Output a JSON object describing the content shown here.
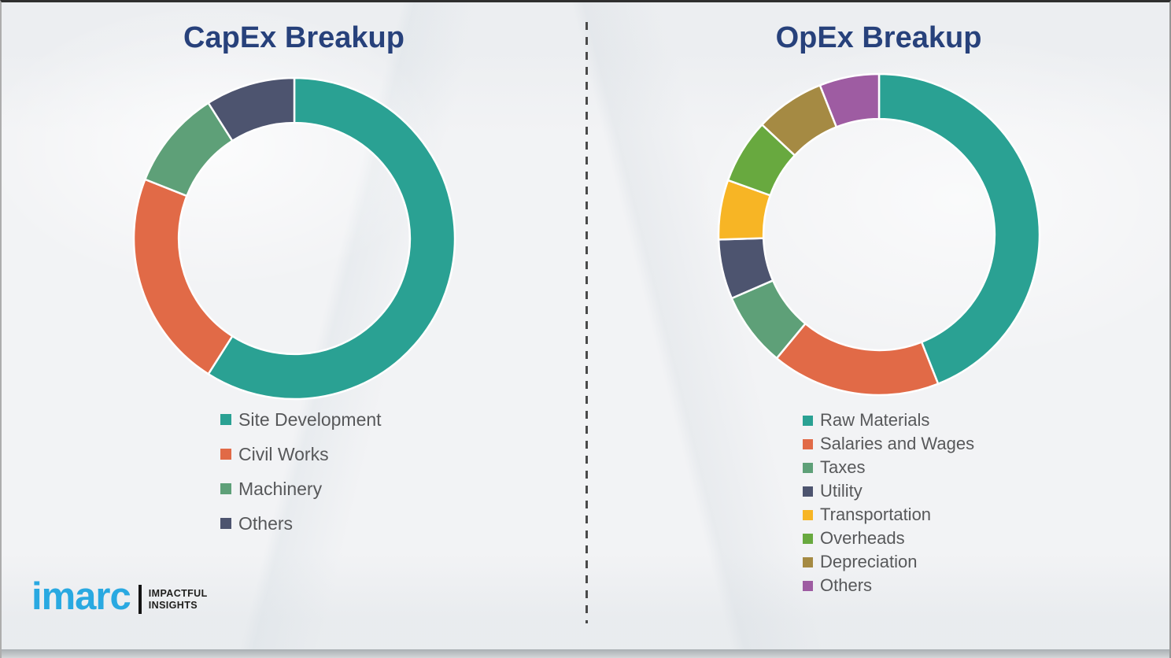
{
  "theme": {
    "title_color": "#27417b",
    "legend_text_color": "#57585a",
    "logo_blue": "#29a9e1",
    "background": "#f2f3f5",
    "segment_separator": "#ffffff",
    "divider_color": "#4a4a4a"
  },
  "branding": {
    "logo_text": "imarc",
    "tagline_line1": "IMPACTFUL",
    "tagline_line2": "INSIGHTS"
  },
  "chart_data": [
    {
      "type": "pie",
      "title": "CapEx Breakup",
      "labels": [
        "Site Development",
        "Civil Works",
        "Machinery",
        "Others"
      ],
      "values": [
        59,
        22,
        10,
        9
      ],
      "unit": "percent_estimated_from_arc_angles",
      "colors": [
        "#2aa193",
        "#e16a47",
        "#5ea078",
        "#4d546f"
      ],
      "donut_hole_ratio": 0.72,
      "start_angle_deg": 0,
      "direction": "clockwise",
      "legend_position": "below",
      "data_labels_shown": false
    },
    {
      "type": "pie",
      "title": "OpEx Breakup",
      "labels": [
        "Raw Materials",
        "Salaries and Wages",
        "Taxes",
        "Utility",
        "Transportation",
        "Overheads",
        "Depreciation",
        "Others"
      ],
      "values": [
        44,
        17,
        7.5,
        6,
        6,
        6.5,
        7,
        6
      ],
      "unit": "percent_estimated_from_arc_angles",
      "colors": [
        "#2aa193",
        "#e16a47",
        "#5ea078",
        "#4d546f",
        "#f7b525",
        "#68a93f",
        "#a58a43",
        "#9e5ca2"
      ],
      "donut_hole_ratio": 0.72,
      "start_angle_deg": 0,
      "direction": "clockwise",
      "legend_position": "below",
      "data_labels_shown": false
    }
  ]
}
